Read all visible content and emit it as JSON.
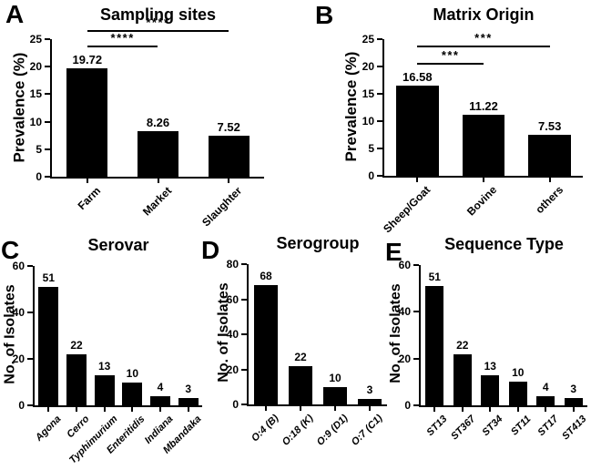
{
  "figure": {
    "bg_color": "#ffffff",
    "bar_color": "#000000",
    "axis_color": "#000000",
    "text_color": "#000000"
  },
  "chart_data": [
    {
      "type": "bar",
      "panel": "A",
      "title": "Sampling sites",
      "ylabel": "Prevalence (%)",
      "xlabel": "",
      "ylim": [
        0,
        25
      ],
      "yticks": [
        0,
        5,
        10,
        15,
        20,
        25
      ],
      "grid": false,
      "categories": [
        "Farm",
        "Market",
        "Slaughter"
      ],
      "values": [
        19.72,
        8.26,
        7.52
      ],
      "bar_labels": [
        "19.72",
        "8.26",
        "7.52"
      ],
      "xtick_italic": false,
      "significance": [
        {
          "from": 0,
          "to": 1,
          "label": "****",
          "y": 23.8
        },
        {
          "from": 0,
          "to": 2,
          "label": "****",
          "y": 26.7
        }
      ]
    },
    {
      "type": "bar",
      "panel": "B",
      "title": "Matrix Origin",
      "ylabel": "Prevalence (%)",
      "xlabel": "",
      "ylim": [
        0,
        25
      ],
      "yticks": [
        0,
        5,
        10,
        15,
        20,
        25
      ],
      "grid": false,
      "categories": [
        "Sheep/Goat",
        "Bovine",
        "others"
      ],
      "values": [
        16.58,
        11.22,
        7.53
      ],
      "bar_labels": [
        "16.58",
        "11.22",
        "7.53"
      ],
      "xtick_italic": false,
      "significance": [
        {
          "from": 0,
          "to": 1,
          "label": "***",
          "y": 20.7
        },
        {
          "from": 0,
          "to": 2,
          "label": "***",
          "y": 23.9
        }
      ]
    },
    {
      "type": "bar",
      "panel": "C",
      "title": "Serovar",
      "ylabel": "No. of Isolates",
      "xlabel": "",
      "ylim": [
        0,
        60
      ],
      "yticks": [
        0,
        20,
        40,
        60
      ],
      "grid": false,
      "categories": [
        "Agona",
        "Cerro",
        "Typhimurium",
        "Enteritidis",
        "Indiana",
        "Mbandaka"
      ],
      "values": [
        51,
        22,
        13,
        10,
        4,
        3
      ],
      "bar_labels": [
        "51",
        "22",
        "13",
        "10",
        "4",
        "3"
      ],
      "xtick_italic": true,
      "significance": []
    },
    {
      "type": "bar",
      "panel": "D",
      "title": "Serogroup",
      "ylabel": "No. of Isolates",
      "xlabel": "",
      "ylim": [
        0,
        80
      ],
      "yticks": [
        0,
        20,
        40,
        60,
        80
      ],
      "grid": false,
      "categories": [
        "O:4 (B)",
        "O:18 (K)",
        "O:9 (D1)",
        "O:7 (C1)"
      ],
      "values": [
        68,
        22,
        10,
        3
      ],
      "bar_labels": [
        "68",
        "22",
        "10",
        "3"
      ],
      "xtick_italic": true,
      "significance": []
    },
    {
      "type": "bar",
      "panel": "E",
      "title": "Sequence Type",
      "ylabel": "No. of Isolates",
      "xlabel": "",
      "ylim": [
        0,
        60
      ],
      "yticks": [
        0,
        20,
        40,
        60
      ],
      "grid": false,
      "categories": [
        "ST13",
        "ST367",
        "ST34",
        "ST11",
        "ST17",
        "ST413"
      ],
      "values": [
        51,
        22,
        13,
        10,
        4,
        3
      ],
      "bar_labels": [
        "51",
        "22",
        "13",
        "10",
        "4",
        "3"
      ],
      "xtick_italic": true,
      "significance": []
    }
  ]
}
